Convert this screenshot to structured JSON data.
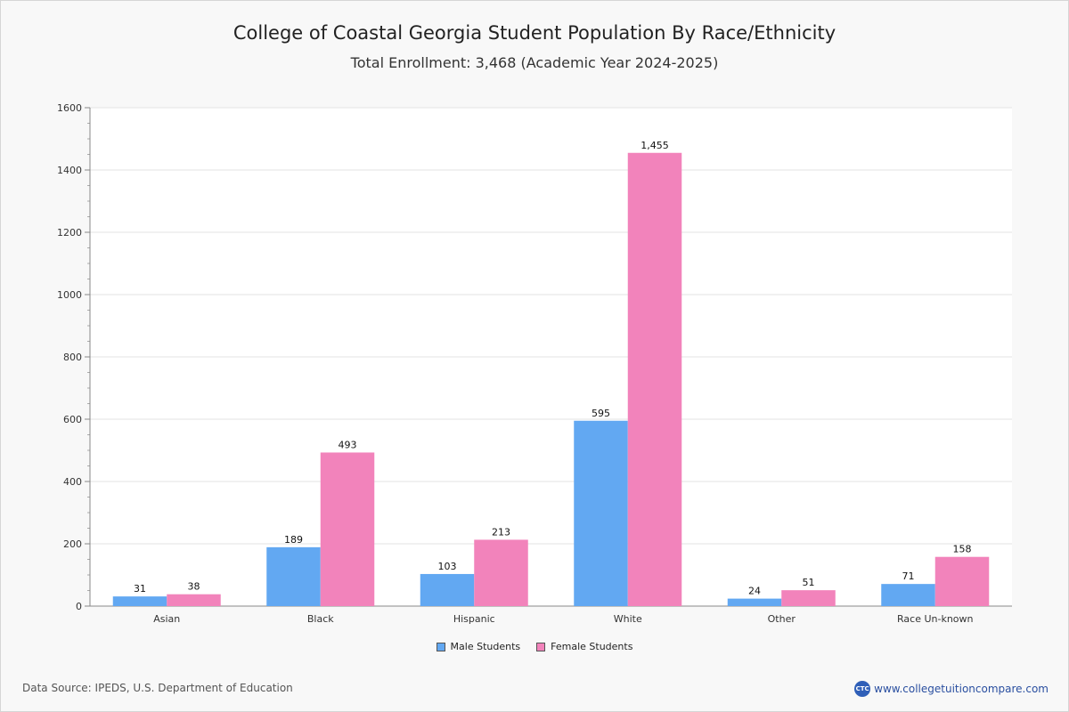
{
  "chart_data": {
    "type": "bar",
    "title": "College of Coastal Georgia Student Population By Race/Ethnicity",
    "subtitle": "Total Enrollment: 3,468 (Academic Year 2024-2025)",
    "categories": [
      "Asian",
      "Black",
      "Hispanic",
      "White",
      "Other",
      "Race Un-known"
    ],
    "series": [
      {
        "name": "Male Students",
        "color": "#62a8f2",
        "values": [
          31,
          189,
          103,
          595,
          24,
          71
        ],
        "labels": [
          "31",
          "189",
          "103",
          "595",
          "24",
          "71"
        ]
      },
      {
        "name": "Female Students",
        "color": "#f283bb",
        "values": [
          38,
          493,
          213,
          1455,
          51,
          158
        ],
        "labels": [
          "38",
          "493",
          "213",
          "1,455",
          "51",
          "158"
        ]
      }
    ],
    "ylim": [
      0,
      1600
    ],
    "yticks": [
      0,
      200,
      400,
      600,
      800,
      1000,
      1200,
      1400,
      1600
    ],
    "grid": true,
    "legend_position": "bottom"
  },
  "footer": {
    "source": "Data Source: IPEDS, U.S. Department of Education",
    "brand_logo": "CTC",
    "brand_url": "www.collegetuitioncompare.com"
  }
}
